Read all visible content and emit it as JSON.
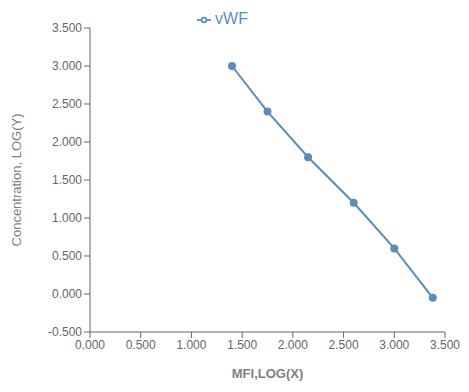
{
  "chart_data": {
    "type": "line",
    "x": [
      1.4,
      1.75,
      2.15,
      2.6,
      3.0,
      3.38
    ],
    "series": [
      {
        "name": "vWF",
        "color": "#5b8db8",
        "marker": "o",
        "values": [
          3.0,
          2.4,
          1.8,
          1.2,
          0.6,
          -0.05
        ]
      }
    ],
    "xlabel": "MFI,LOG(X)",
    "ylabel": "Concentration, LOG(Y)",
    "xlim": [
      0.0,
      3.5
    ],
    "ylim": [
      -0.5,
      3.5
    ],
    "xticks": [
      {
        "value": 0.0,
        "label": "0.000"
      },
      {
        "value": 0.5,
        "label": "0.500"
      },
      {
        "value": 1.0,
        "label": "1.000"
      },
      {
        "value": 1.5,
        "label": "1.500"
      },
      {
        "value": 2.0,
        "label": "2.000"
      },
      {
        "value": 2.5,
        "label": "2.500"
      },
      {
        "value": 3.0,
        "label": "3.000"
      },
      {
        "value": 3.5,
        "label": "3.500"
      }
    ],
    "yticks": [
      {
        "value": -0.5,
        "label": "-0.500"
      },
      {
        "value": 0.0,
        "label": "0.000"
      },
      {
        "value": 0.5,
        "label": "0.500"
      },
      {
        "value": 1.0,
        "label": "1.000"
      },
      {
        "value": 1.5,
        "label": "1.500"
      },
      {
        "value": 2.0,
        "label": "2.000"
      },
      {
        "value": 2.5,
        "label": "2.500"
      },
      {
        "value": 3.0,
        "label": "3.000"
      },
      {
        "value": 3.5,
        "label": "3.500"
      }
    ],
    "grid": false,
    "legend": "top"
  }
}
